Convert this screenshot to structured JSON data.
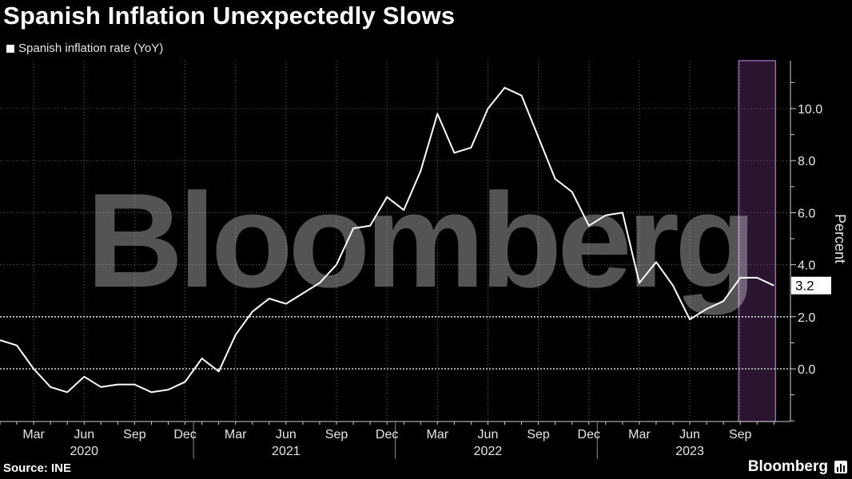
{
  "header": {
    "title": "Spanish Inflation Unexpectedly Slows",
    "legend_label": "Spanish inflation rate (YoY)"
  },
  "footer": {
    "source": "Source: INE",
    "brand": "Bloomberg"
  },
  "watermark": "Bloomberg",
  "colors": {
    "background": "#000000",
    "line": "#ffffff",
    "highlight_fill": "#2a1530",
    "highlight_border": "#b07cc6",
    "grid": "#6a6a6a"
  },
  "chart_data": {
    "type": "line",
    "title": "Spanish Inflation Unexpectedly Slows",
    "ylabel": "Percent",
    "ylim": [
      -2,
      12
    ],
    "yticks": [
      0,
      2,
      4,
      6,
      8,
      10
    ],
    "ytick_labels": [
      "0.0",
      "2.0",
      "4.0",
      "6.0",
      "8.0",
      "10.0"
    ],
    "reference_lines": [
      0,
      2
    ],
    "last_value_label": "3.2",
    "grid": true,
    "x_months": [
      "2020-01",
      "2020-02",
      "2020-03",
      "2020-04",
      "2020-05",
      "2020-06",
      "2020-07",
      "2020-08",
      "2020-09",
      "2020-10",
      "2020-11",
      "2020-12",
      "2021-01",
      "2021-02",
      "2021-03",
      "2021-04",
      "2021-05",
      "2021-06",
      "2021-07",
      "2021-08",
      "2021-09",
      "2021-10",
      "2021-11",
      "2021-12",
      "2022-01",
      "2022-02",
      "2022-03",
      "2022-04",
      "2022-05",
      "2022-06",
      "2022-07",
      "2022-08",
      "2022-09",
      "2022-10",
      "2022-11",
      "2022-12",
      "2023-01",
      "2023-02",
      "2023-03",
      "2023-04",
      "2023-05",
      "2023-06",
      "2023-07",
      "2023-08",
      "2023-09",
      "2023-10",
      "2023-11"
    ],
    "series": [
      {
        "name": "Spanish inflation rate (YoY)",
        "values": [
          1.1,
          0.9,
          0.0,
          -0.7,
          -0.9,
          -0.3,
          -0.7,
          -0.6,
          -0.6,
          -0.9,
          -0.8,
          -0.5,
          0.4,
          -0.1,
          1.3,
          2.2,
          2.7,
          2.5,
          2.9,
          3.3,
          4.0,
          5.4,
          5.5,
          6.6,
          6.1,
          7.6,
          9.8,
          8.3,
          8.5,
          10.0,
          10.8,
          10.5,
          8.9,
          7.3,
          6.8,
          5.5,
          5.9,
          6.0,
          3.3,
          4.1,
          3.2,
          1.9,
          2.3,
          2.6,
          3.5,
          3.5,
          3.2
        ]
      }
    ],
    "highlight_range": [
      "2023-09",
      "2023-11"
    ],
    "x_tick_labels": [
      {
        "month": "2020-03",
        "label": "Mar"
      },
      {
        "month": "2020-06",
        "label": "Jun"
      },
      {
        "month": "2020-09",
        "label": "Sep"
      },
      {
        "month": "2020-12",
        "label": "Dec"
      },
      {
        "month": "2021-03",
        "label": "Mar"
      },
      {
        "month": "2021-06",
        "label": "Jun"
      },
      {
        "month": "2021-09",
        "label": "Sep"
      },
      {
        "month": "2021-12",
        "label": "Dec"
      },
      {
        "month": "2022-03",
        "label": "Mar"
      },
      {
        "month": "2022-06",
        "label": "Jun"
      },
      {
        "month": "2022-09",
        "label": "Sep"
      },
      {
        "month": "2022-12",
        "label": "Dec"
      },
      {
        "month": "2023-03",
        "label": "Mar"
      },
      {
        "month": "2023-06",
        "label": "Jun"
      },
      {
        "month": "2023-09",
        "label": "Sep"
      }
    ],
    "year_labels": [
      {
        "month": "2020-06",
        "label": "2020"
      },
      {
        "month": "2021-06",
        "label": "2021"
      },
      {
        "month": "2022-06",
        "label": "2022"
      },
      {
        "month": "2023-06",
        "label": "2023"
      }
    ]
  }
}
